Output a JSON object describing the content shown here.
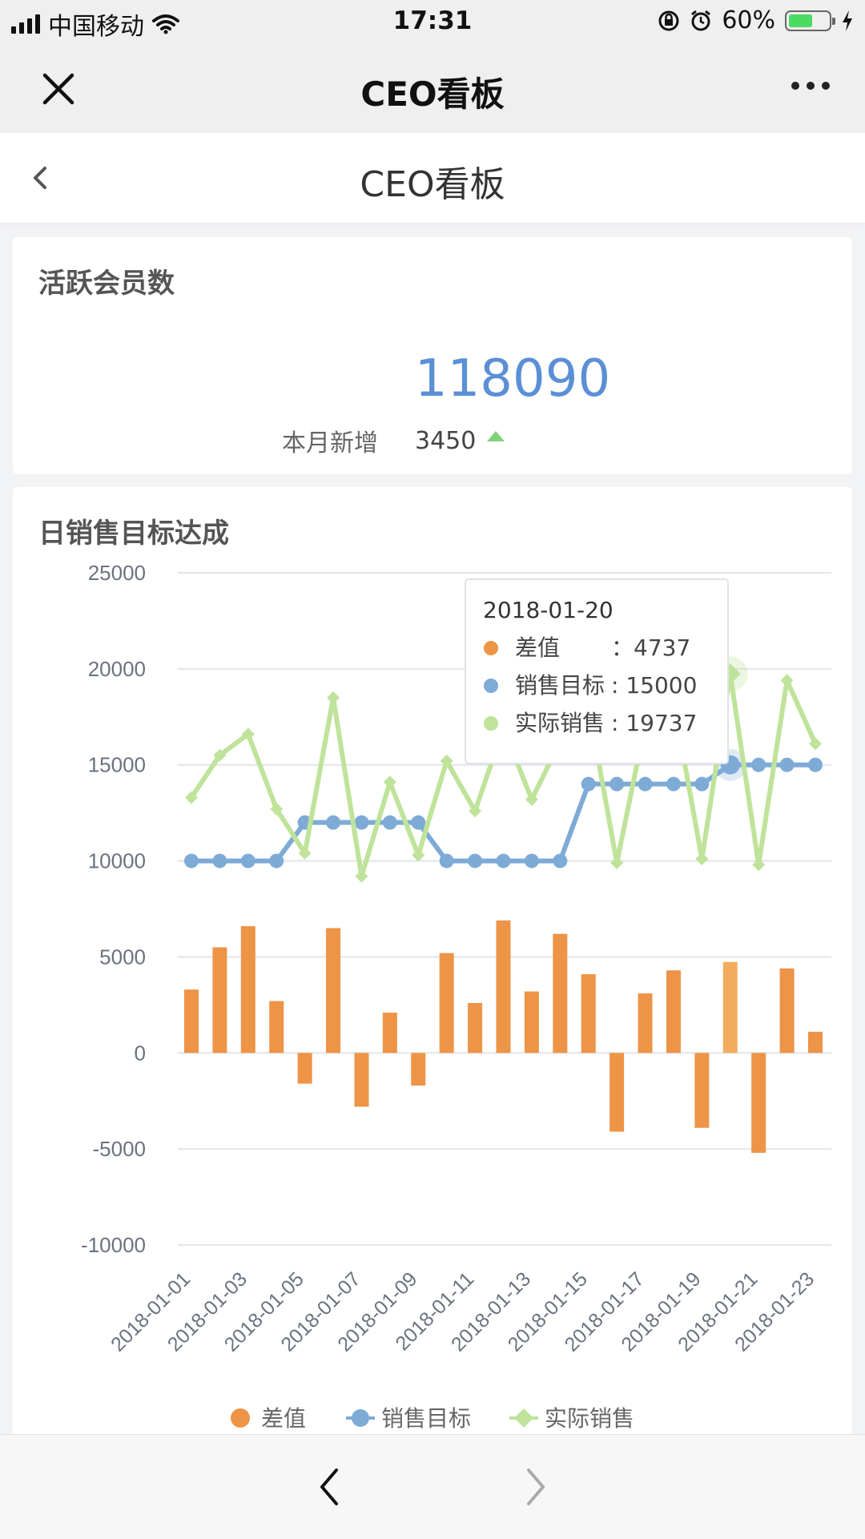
{
  "status_bar": {
    "carrier": "中国移动",
    "time": "17:31",
    "battery_percent": "60%",
    "battery_level": 0.6,
    "icons": [
      "signal-icon",
      "wifi-icon",
      "orientation-lock-icon",
      "alarm-icon",
      "battery-icon",
      "charging-icon"
    ]
  },
  "nav": {
    "title": "CEO看板",
    "close_icon": "close-icon",
    "more_icon": "more-icon"
  },
  "page": {
    "title": "CEO看板",
    "back_icon": "back-icon"
  },
  "kpi": {
    "title": "活跃会员数",
    "value": "118090",
    "sub_label": "本月新增",
    "sub_value": "3450",
    "trend_icon": "up-arrow-icon",
    "colors": {
      "value": "#5b8fd6",
      "trend": "#7fd37a"
    }
  },
  "chart_card": {
    "title": "日销售目标达成"
  },
  "chart_data": {
    "type": "bar",
    "categories": [
      "2018-01-01",
      "2018-01-02",
      "2018-01-03",
      "2018-01-04",
      "2018-01-05",
      "2018-01-06",
      "2018-01-07",
      "2018-01-08",
      "2018-01-09",
      "2018-01-10",
      "2018-01-11",
      "2018-01-12",
      "2018-01-13",
      "2018-01-14",
      "2018-01-15",
      "2018-01-16",
      "2018-01-17",
      "2018-01-18",
      "2018-01-19",
      "2018-01-20",
      "2018-01-21",
      "2018-01-22",
      "2018-01-23"
    ],
    "x_tick_labels": [
      "2018-01-01",
      "2018-01-03",
      "2018-01-05",
      "2018-01-07",
      "2018-01-09",
      "2018-01-11",
      "2018-01-13",
      "2018-01-15",
      "2018-01-17",
      "2018-01-19",
      "2018-01-21",
      "2018-01-23"
    ],
    "y_ticks": [
      25000,
      20000,
      15000,
      10000,
      5000,
      0,
      -5000,
      -10000
    ],
    "ylim": [
      -10000,
      25000
    ],
    "grid": true,
    "legend_position": "bottom",
    "series": [
      {
        "name": "差值",
        "type": "bar",
        "color": "#ed9447",
        "values": [
          3300,
          5500,
          6600,
          2700,
          -1600,
          6500,
          -2800,
          2100,
          -1700,
          5200,
          2600,
          6900,
          3200,
          6200,
          4100,
          -4100,
          3100,
          4300,
          -3900,
          4737,
          -5200,
          4400,
          1100
        ]
      },
      {
        "name": "销售目标",
        "type": "line",
        "color": "#7eaad6",
        "values": [
          10000,
          10000,
          10000,
          10000,
          12000,
          12000,
          12000,
          12000,
          12000,
          10000,
          10000,
          10000,
          10000,
          10000,
          14000,
          14000,
          14000,
          14000,
          14000,
          15000,
          15000,
          15000,
          15000
        ]
      },
      {
        "name": "实际销售",
        "type": "line",
        "color": "#bfe39a",
        "values": [
          13300,
          15500,
          16600,
          12700,
          10400,
          18500,
          9200,
          14100,
          10300,
          15200,
          12600,
          16900,
          13200,
          16200,
          18100,
          9900,
          17100,
          18300,
          10100,
          19737,
          9800,
          19400,
          16100
        ]
      }
    ],
    "highlight_index": 19,
    "tooltip": {
      "date": "2018-01-20",
      "rows": [
        {
          "name": "差值",
          "sep": "：",
          "value": "4737",
          "color": "#ed9447"
        },
        {
          "name": "销售目标",
          "sep": ": ",
          "value": "15000",
          "color": "#7eaad6"
        },
        {
          "name": "实际销售",
          "sep": ": ",
          "value": "19737",
          "color": "#bfe39a"
        }
      ]
    }
  },
  "bottom_bar": {
    "prev_icon": "back-arrow-icon",
    "next_icon": "forward-arrow-icon"
  }
}
